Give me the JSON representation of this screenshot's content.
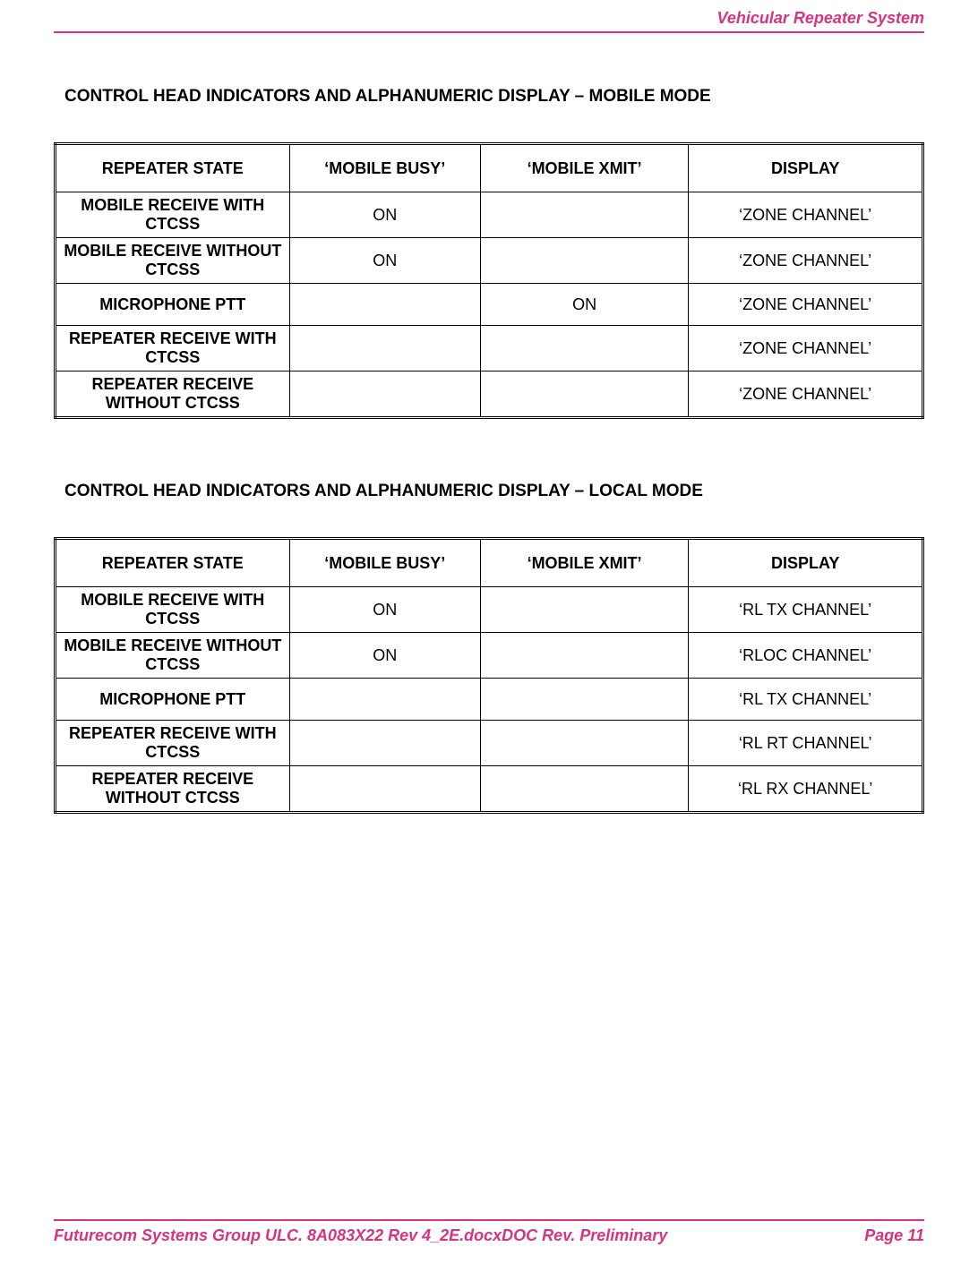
{
  "header": {
    "title_right": "Vehicular Repeater System"
  },
  "section1": {
    "title": "CONTROL HEAD INDICATORS AND ALPHANUMERIC DISPLAY – MOBILE MODE",
    "columns": [
      "REPEATER STATE",
      "‘MOBILE BUSY’",
      "‘MOBILE XMIT’",
      "DISPLAY"
    ],
    "rows": [
      {
        "state": "MOBILE RECEIVE WITH CTCSS",
        "busy": "ON",
        "xmit": "",
        "display": "‘ZONE CHANNEL’"
      },
      {
        "state": "MOBILE RECEIVE WITHOUT CTCSS",
        "busy": "ON",
        "xmit": "",
        "display": "‘ZONE CHANNEL’"
      },
      {
        "state": "MICROPHONE PTT",
        "busy": "",
        "xmit": "ON",
        "display": "‘ZONE CHANNEL’"
      },
      {
        "state": "REPEATER RECEIVE WITH CTCSS",
        "busy": "",
        "xmit": "",
        "display": "‘ZONE CHANNEL’"
      },
      {
        "state": "REPEATER RECEIVE WITHOUT CTCSS",
        "busy": "",
        "xmit": "",
        "display": "‘ZONE CHANNEL’"
      }
    ]
  },
  "section2": {
    "title": "CONTROL HEAD INDICATORS AND ALPHANUMERIC DISPLAY – LOCAL MODE",
    "columns": [
      "REPEATER STATE",
      "‘MOBILE BUSY’",
      "‘MOBILE XMIT’",
      "DISPLAY"
    ],
    "rows": [
      {
        "state": "MOBILE RECEIVE WITH CTCSS",
        "busy": "ON",
        "xmit": "",
        "display": "‘RL TX CHANNEL’"
      },
      {
        "state": "MOBILE RECEIVE WITHOUT CTCSS",
        "busy": "ON",
        "xmit": "",
        "display": "‘RLOC CHANNEL’"
      },
      {
        "state": "MICROPHONE PTT",
        "busy": "",
        "xmit": "",
        "display": "‘RL TX CHANNEL’"
      },
      {
        "state": "REPEATER RECEIVE WITH CTCSS",
        "busy": "",
        "xmit": "",
        "display": "‘RL RT CHANNEL’"
      },
      {
        "state": "REPEATER RECEIVE WITHOUT CTCSS",
        "busy": "",
        "xmit": "",
        "display": "‘RL RX CHANNEL’"
      }
    ]
  },
  "footer": {
    "left": "Futurecom Systems Group ULC. 8A083X22 Rev 4_2E.docxDOC Rev. Preliminary",
    "right": "Page 11"
  },
  "styling": {
    "accent_color": "#d63384",
    "text_color": "#000000",
    "background_color": "#ffffff",
    "body_font_size_pt": 14,
    "title_font_size_pt": 14,
    "table_border_color": "#000000",
    "col_widths_pct": [
      27,
      22,
      24,
      27
    ]
  }
}
